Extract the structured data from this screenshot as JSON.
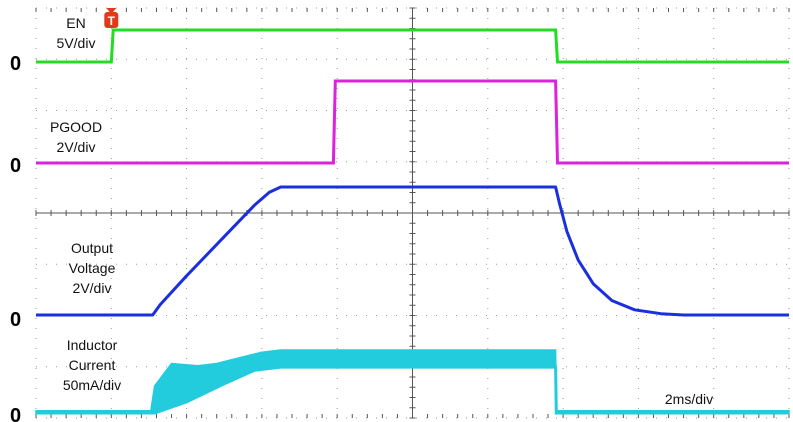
{
  "chart_data": {
    "type": "line",
    "title": "",
    "time_scale": "2ms/div",
    "x_unit": "ms",
    "x_range": [
      0,
      20
    ],
    "grid": true,
    "trigger_marker": "T",
    "zero_label": "0",
    "channels": [
      {
        "key": "en",
        "label_lines": [
          "EN",
          "5V/div"
        ],
        "color": "#22dd22",
        "volts_per_div": 5,
        "points": [
          [
            0,
            0
          ],
          [
            2.0,
            0
          ],
          [
            2.05,
            5
          ],
          [
            13.8,
            5
          ],
          [
            13.85,
            0
          ],
          [
            20,
            0
          ]
        ]
      },
      {
        "key": "pgood",
        "label_lines": [
          "PGOOD",
          "2V/div"
        ],
        "color": "#dd22dd",
        "volts_per_div": 2,
        "points": [
          [
            0,
            0
          ],
          [
            7.9,
            0
          ],
          [
            7.95,
            3.3
          ],
          [
            13.8,
            3.3
          ],
          [
            13.85,
            0
          ],
          [
            20,
            0
          ]
        ]
      },
      {
        "key": "vout",
        "label_lines": [
          "Output",
          "Voltage",
          "2V/div"
        ],
        "color": "#1a2fdd",
        "volts_per_div": 2,
        "points": [
          [
            0,
            0
          ],
          [
            3.1,
            0
          ],
          [
            3.3,
            0.4
          ],
          [
            4.0,
            1.5
          ],
          [
            5.0,
            3.0
          ],
          [
            5.8,
            4.2
          ],
          [
            6.2,
            4.7
          ],
          [
            6.5,
            4.9
          ],
          [
            13.8,
            4.9
          ],
          [
            13.9,
            4.3
          ],
          [
            14.1,
            3.2
          ],
          [
            14.4,
            2.1
          ],
          [
            14.8,
            1.2
          ],
          [
            15.3,
            0.55
          ],
          [
            15.9,
            0.2
          ],
          [
            16.6,
            0.05
          ],
          [
            17.2,
            0
          ],
          [
            20,
            0
          ]
        ]
      },
      {
        "key": "il",
        "label_lines": [
          "Inductor",
          "Current",
          "50mA/div"
        ],
        "color": "#22ccdd",
        "ma_per_div": 50,
        "envelope_upper": [
          [
            0,
            5
          ],
          [
            3.05,
            5
          ],
          [
            3.15,
            60
          ],
          [
            3.6,
            110
          ],
          [
            4.3,
            105
          ],
          [
            4.8,
            110
          ],
          [
            5.5,
            125
          ],
          [
            6.0,
            135
          ],
          [
            6.5,
            140
          ],
          [
            13.8,
            140
          ],
          [
            13.82,
            5
          ],
          [
            20,
            5
          ]
        ],
        "envelope_lower": [
          [
            0,
            0
          ],
          [
            3.05,
            0
          ],
          [
            3.15,
            0
          ],
          [
            4.0,
            25
          ],
          [
            5.0,
            65
          ],
          [
            5.8,
            95
          ],
          [
            6.5,
            102
          ],
          [
            13.8,
            102
          ],
          [
            13.82,
            0
          ],
          [
            20,
            0
          ]
        ]
      }
    ]
  }
}
